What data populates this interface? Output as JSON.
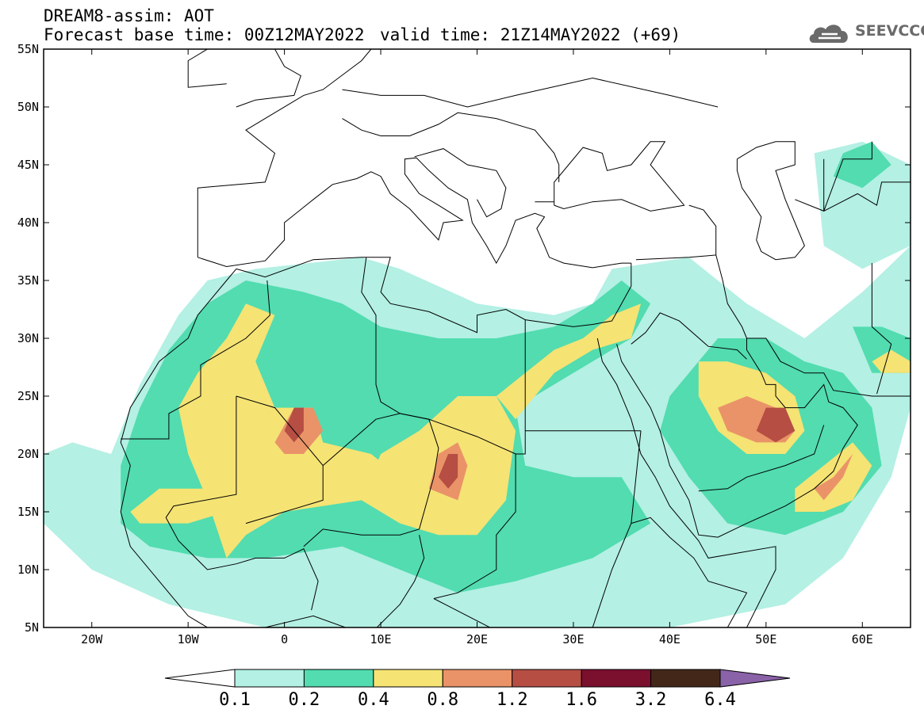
{
  "header": {
    "line1": "DREAM8-assim: AOT",
    "base": "Forecast base time: 00Z12MAY2022",
    "valid": "valid time: 21Z14MAY2022 (+69)"
  },
  "logo": {
    "text": "SEEVCCC",
    "icon": "cloud-icon"
  },
  "map": {
    "extent": {
      "lon": [
        -25,
        65
      ],
      "lat": [
        5,
        55
      ]
    },
    "lat_ticks": [
      {
        "v": 55,
        "label": "55N"
      },
      {
        "v": 50,
        "label": "50N"
      },
      {
        "v": 45,
        "label": "45N"
      },
      {
        "v": 40,
        "label": "40N"
      },
      {
        "v": 35,
        "label": "35N"
      },
      {
        "v": 30,
        "label": "30N"
      },
      {
        "v": 25,
        "label": "25N"
      },
      {
        "v": 20,
        "label": "20N"
      },
      {
        "v": 15,
        "label": "15N"
      },
      {
        "v": 10,
        "label": "10N"
      },
      {
        "v": 5,
        "label": "5N"
      }
    ],
    "lon_ticks": [
      {
        "v": -20,
        "label": "20W"
      },
      {
        "v": -10,
        "label": "10W"
      },
      {
        "v": 0,
        "label": "0"
      },
      {
        "v": 10,
        "label": "10E"
      },
      {
        "v": 20,
        "label": "20E"
      },
      {
        "v": 30,
        "label": "30E"
      },
      {
        "v": 40,
        "label": "40E"
      },
      {
        "v": 50,
        "label": "50E"
      },
      {
        "v": 60,
        "label": "60E"
      }
    ]
  },
  "colorbar": {
    "labels": [
      "0.1",
      "0.2",
      "0.4",
      "0.8",
      "1.2",
      "1.6",
      "3.2",
      "6.4"
    ],
    "colors": [
      "#b4f0e4",
      "#52dcb0",
      "#f5e374",
      "#ea9368",
      "#b64e43",
      "#7a0f2e",
      "#43281a"
    ],
    "over_color": "#8a62a8",
    "under_color": "#ffffff"
  }
}
